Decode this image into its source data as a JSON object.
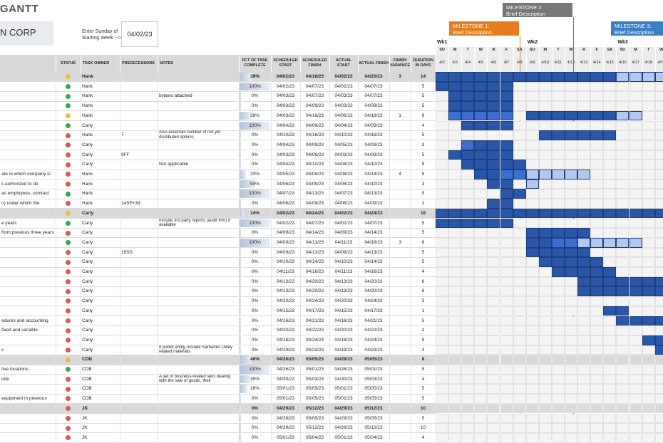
{
  "title": "GANTT",
  "company": "N CORP",
  "week_start_label": "Enter Sunday of Starting Week -->",
  "week_start_value": "04/02/23",
  "colors": {
    "green": "#3aa655",
    "red": "#e05555",
    "yellow": "#f0b84a",
    "dark": "#2a56a8",
    "med": "#3d6fd0",
    "light": "#b4c8ee",
    "orange": "#e57c1f",
    "gray": "#777777",
    "navy": "#3a7fc2"
  },
  "milestones": [
    {
      "label": "MILESTONE 1:\nBrief Description",
      "color": "orange"
    },
    {
      "label": "MILESTONE 2:\nBrief Description",
      "color": "gray"
    },
    {
      "label": "MILESTONE 3:\nBrief Description",
      "color": "navy"
    }
  ],
  "weeks": [
    "Wk1",
    "Wk2",
    "Wk3"
  ],
  "day_letters": [
    "SU",
    "M",
    "T",
    "W",
    "R",
    "F",
    "SA",
    "SU",
    "M",
    "T",
    "W",
    "R",
    "F",
    "SA",
    "SU",
    "M",
    "T",
    "W"
  ],
  "dates": [
    "4/2",
    "4/3",
    "4/4",
    "4/5",
    "4/6",
    "4/7",
    "4/8",
    "4/9",
    "4/10",
    "4/11",
    "4/12",
    "4/13",
    "4/14",
    "4/15",
    "4/16",
    "4/17",
    "4/18",
    "4/19"
  ],
  "headers": {
    "status": "STATUS",
    "owner": "TASK OWNER",
    "pred": "PREDECESSORS",
    "notes": "NOTES",
    "pct": "PCT OF TASK COMPLETE",
    "sstart": "SCHEDULED START",
    "sfinish": "SCHEDULED FINISH",
    "astart": "ACTUAL START",
    "afinish": "ACTUAL FINISH",
    "var": "FINISH VARIANCE",
    "dur": "DURATION IN DAYS"
  },
  "rows": [
    {
      "task": "",
      "status": "yellow",
      "owner": "Hank",
      "pred": "",
      "notes": "",
      "pct": "39%",
      "ss": "04/02/23",
      "sf": "04/16/23",
      "as": "04/02/23",
      "af": "04/20/23",
      "var": "3",
      "dur": "14",
      "header": true,
      "gantt": {
        "dark": [
          0,
          14
        ],
        "light": [
          14,
          18
        ]
      }
    },
    {
      "task": "",
      "status": "green",
      "owner": "Hank",
      "pred": "",
      "notes": "",
      "pct": "100%",
      "ss": "04/02/23",
      "sf": "04/07/23",
      "as": "04/02/23",
      "af": "04/07/23",
      "var": "",
      "dur": "5",
      "gantt": {
        "dark": [
          0,
          6
        ]
      }
    },
    {
      "task": "",
      "status": "green",
      "owner": "Hank",
      "pred": "",
      "notes": "bylaws attached",
      "pct": "0%",
      "ss": "04/03/23",
      "sf": "04/07/23",
      "as": "04/03/23",
      "af": "04/07/23",
      "var": "",
      "dur": "5",
      "gantt": {
        "dark": [
          1,
          6
        ]
      }
    },
    {
      "task": "",
      "status": "green",
      "owner": "Hank",
      "pred": "",
      "notes": "",
      "pct": "0%",
      "ss": "04/03/23",
      "sf": "04/09/23",
      "as": "04/03/23",
      "af": "04/09/23",
      "var": "",
      "dur": "5",
      "gantt": {
        "dark": [
          1,
          6
        ]
      }
    },
    {
      "task": "",
      "status": "yellow",
      "owner": "Hank",
      "pred": "",
      "notes": "",
      "pct": "38%",
      "ss": "04/03/23",
      "sf": "04/16/23",
      "as": "04/06/23",
      "af": "04/18/23",
      "var": "1",
      "dur": "9",
      "gantt": {
        "med": [
          1,
          6
        ],
        "dark": [
          7,
          14
        ],
        "light": [
          14,
          16
        ]
      }
    },
    {
      "task": "",
      "status": "green",
      "owner": "Carly",
      "pred": "",
      "notes": "",
      "pct": "100%",
      "ss": "04/04/23",
      "sf": "04/09/23",
      "as": "04/04/23",
      "af": "04/09/23",
      "var": "",
      "dur": "4",
      "gantt": {
        "dark": [
          2,
          6
        ]
      }
    },
    {
      "task": "",
      "status": "red",
      "owner": "Hank",
      "pred": "7",
      "notes": "Also ascertain number of not yet distributed options",
      "pct": "0%",
      "ss": "04/10/23",
      "sf": "04/16/23",
      "as": "04/10/23",
      "af": "04/16/23",
      "var": "",
      "dur": "5",
      "gantt": {
        "dark": [
          8,
          14
        ]
      }
    },
    {
      "task": "",
      "status": "red",
      "owner": "Carly",
      "pred": "",
      "notes": "",
      "pct": "0%",
      "ss": "04/04/23",
      "sf": "04/09/23",
      "as": "04/05/23",
      "af": "04/09/23",
      "var": "",
      "dur": "3",
      "gantt": {
        "med": [
          2,
          3
        ],
        "dark": [
          3,
          6
        ]
      }
    },
    {
      "task": "",
      "status": "red",
      "owner": "Carly",
      "pred": "9FF",
      "notes": "",
      "pct": "0%",
      "ss": "04/03/23",
      "sf": "04/09/23",
      "as": "04/03/23",
      "af": "04/09/23",
      "var": "",
      "dur": "5",
      "gantt": {
        "dark": [
          1,
          6
        ]
      }
    },
    {
      "task": "",
      "status": "red",
      "owner": "Carly",
      "pred": "",
      "notes": "Not applicable",
      "pct": "0%",
      "ss": "04/04/23",
      "sf": "04/10/23",
      "as": "04/04/23",
      "af": "04/10/23",
      "var": "",
      "dur": "5",
      "gantt": {
        "dark": [
          2,
          7
        ]
      }
    },
    {
      "task": "ate in which company is",
      "status": "red",
      "owner": "Hank",
      "pred": "",
      "notes": "",
      "pct": "20%",
      "ss": "04/05/23",
      "sf": "04/09/23",
      "as": "04/08/23",
      "af": "04/14/23",
      "var": "4",
      "dur": "5",
      "gantt": {
        "dark": [
          3,
          5
        ],
        "med": [
          5,
          7
        ],
        "light": [
          7,
          12
        ]
      }
    },
    {
      "task": "s authorized to do",
      "status": "red",
      "owner": "Hank",
      "pred": "",
      "notes": "",
      "pct": "50%",
      "ss": "04/06/23",
      "sf": "04/09/23",
      "as": "04/06/23",
      "af": "04/10/23",
      "var": "",
      "dur": "3",
      "gantt": {
        "dark": [
          4,
          6
        ],
        "light": [
          7,
          8
        ]
      }
    },
    {
      "task": "as employees, contract",
      "status": "green",
      "owner": "Hank",
      "pred": "",
      "notes": "",
      "pct": "100%",
      "ss": "04/07/23",
      "sf": "04/13/23",
      "as": "04/07/23",
      "af": "04/13/23",
      "var": "",
      "dur": "5",
      "gantt": {
        "dark": [
          5,
          7
        ]
      }
    },
    {
      "task": "n) under which the",
      "status": "red",
      "owner": "Hank",
      "pred": "14SF+3d",
      "notes": "",
      "pct": "0%",
      "ss": "04/06/23",
      "sf": "04/09/23",
      "as": "04/06/23",
      "af": "04/09/23",
      "var": "",
      "dur": "2",
      "gantt": {
        "dark": [
          4,
          6
        ]
      }
    },
    {
      "task": "",
      "status": "yellow",
      "owner": "Carly",
      "pred": "",
      "notes": "",
      "pct": "14%",
      "ss": "04/02/23",
      "sf": "04/24/23",
      "as": "04/02/23",
      "af": "04/24/23",
      "var": "",
      "dur": "16",
      "header": true,
      "gantt": {
        "dark": [
          0,
          18
        ]
      }
    },
    {
      "task": "e years",
      "status": "green",
      "owner": "Carly",
      "pred": "",
      "notes": "Include 3rd party reports (audit firm) if available",
      "pct": "100%",
      "ss": "04/02/23",
      "sf": "04/07/23",
      "as": "04/02/23",
      "af": "04/07/23",
      "var": "",
      "dur": "5",
      "gantt": {
        "dark": [
          0,
          6
        ]
      }
    },
    {
      "task": "from previous three years",
      "status": "red",
      "owner": "Carly",
      "pred": "",
      "notes": "",
      "pct": "0%",
      "ss": "04/09/23",
      "sf": "04/14/23",
      "as": "04/09/23",
      "af": "04/14/23",
      "var": "",
      "dur": "5",
      "gantt": {
        "dark": [
          7,
          12
        ]
      }
    },
    {
      "task": "",
      "status": "green",
      "owner": "Carly",
      "pred": "",
      "notes": "",
      "pct": "100%",
      "ss": "04/09/23",
      "sf": "04/13/23",
      "as": "04/11/23",
      "af": "04/18/23",
      "var": "3",
      "dur": "6",
      "gantt": {
        "dark": [
          7,
          9
        ],
        "med": [
          9,
          11
        ],
        "light": [
          11,
          16
        ]
      }
    },
    {
      "task": "",
      "status": "red",
      "owner": "Carly",
      "pred": "19SS",
      "notes": "",
      "pct": "0%",
      "ss": "04/09/23",
      "sf": "04/13/23",
      "as": "04/09/23",
      "af": "04/13/23",
      "var": "",
      "dur": "5",
      "gantt": {
        "dark": [
          7,
          12
        ]
      }
    },
    {
      "task": "",
      "status": "red",
      "owner": "Carly",
      "pred": "",
      "notes": "",
      "pct": "0%",
      "ss": "04/10/23",
      "sf": "04/14/23",
      "as": "04/10/23",
      "af": "04/14/23",
      "var": "",
      "dur": "5",
      "gantt": {
        "dark": [
          8,
          13
        ]
      }
    },
    {
      "task": "",
      "status": "red",
      "owner": "Carly",
      "pred": "",
      "notes": "",
      "pct": "0%",
      "ss": "04/11/23",
      "sf": "04/16/23",
      "as": "04/11/23",
      "af": "04/16/23",
      "var": "",
      "dur": "4",
      "gantt": {
        "dark": [
          9,
          14
        ]
      }
    },
    {
      "task": "",
      "status": "red",
      "owner": "Carly",
      "pred": "",
      "notes": "",
      "pct": "0%",
      "ss": "04/13/23",
      "sf": "04/20/23",
      "as": "04/13/23",
      "af": "04/20/23",
      "var": "",
      "dur": "6",
      "gantt": {
        "dark": [
          11,
          18
        ]
      }
    },
    {
      "task": "",
      "status": "red",
      "owner": "Carly",
      "pred": "",
      "notes": "",
      "pct": "0%",
      "ss": "04/13/23",
      "sf": "04/20/23",
      "as": "04/13/23",
      "af": "04/20/23",
      "var": "",
      "dur": "6",
      "gantt": {
        "dark": [
          11,
          18
        ]
      }
    },
    {
      "task": "",
      "status": "red",
      "owner": "Carly",
      "pred": "",
      "notes": "",
      "pct": "0%",
      "ss": "04/20/23",
      "sf": "04/24/23",
      "as": "04/20/23",
      "af": "04/24/23",
      "var": "",
      "dur": "3",
      "gantt": {}
    },
    {
      "task": "",
      "status": "red",
      "owner": "Carly",
      "pred": "",
      "notes": "",
      "pct": "0%",
      "ss": "04/15/23",
      "sf": "04/17/23",
      "as": "04/15/23",
      "af": "04/17/23",
      "var": "",
      "dur": "1",
      "gantt": {
        "dark": [
          13,
          15
        ]
      }
    },
    {
      "task": "edures and accounting",
      "status": "red",
      "owner": "Carly",
      "pred": "",
      "notes": "",
      "pct": "0%",
      "ss": "04/16/23",
      "sf": "04/21/23",
      "as": "04/16/23",
      "af": "04/21/23",
      "var": "",
      "dur": "5",
      "gantt": {
        "dark": [
          14,
          18
        ]
      }
    },
    {
      "task": "fixed and variable",
      "status": "red",
      "owner": "Carly",
      "pred": "",
      "notes": "",
      "pct": "0%",
      "ss": "04/20/23",
      "sf": "04/22/23",
      "as": "04/20/23",
      "af": "04/22/23",
      "var": "",
      "dur": "2",
      "gantt": {}
    },
    {
      "task": "",
      "status": "red",
      "owner": "Carly",
      "pred": "",
      "notes": "",
      "pct": "0%",
      "ss": "04/18/23",
      "sf": "04/24/23",
      "as": "04/18/23",
      "af": "04/24/23",
      "var": "",
      "dur": "5",
      "gantt": {
        "dark": [
          16,
          18
        ]
      }
    },
    {
      "task": "s",
      "status": "red",
      "owner": "Carly",
      "pred": "",
      "notes": "If public entity, include Sarbanes Oxley related materials",
      "pct": "0%",
      "ss": "04/19/23",
      "sf": "04/23/23",
      "as": "04/19/23",
      "af": "04/23/23",
      "var": "",
      "dur": "3",
      "gantt": {
        "dark": [
          17,
          18
        ]
      }
    },
    {
      "task": "",
      "status": "yellow",
      "owner": "CDB",
      "pred": "",
      "notes": "",
      "pct": "40%",
      "ss": "04/26/23",
      "sf": "05/05/23",
      "as": "04/26/23",
      "af": "05/05/23",
      "var": "",
      "dur": "8",
      "header": true,
      "gantt": {}
    },
    {
      "task": "tive locations",
      "status": "green",
      "owner": "CDB",
      "pred": "",
      "notes": "",
      "pct": "100%",
      "ss": "04/26/23",
      "sf": "05/01/23",
      "as": "04/26/23",
      "af": "05/01/23",
      "var": "",
      "dur": "5",
      "gantt": {}
    },
    {
      "task": "ode",
      "status": "red",
      "owner": "CDB",
      "pred": "",
      "notes": "A set of business-related laws dealing with the sale of goods, their",
      "pct": "35%",
      "ss": "04/30/23",
      "sf": "05/03/23",
      "as": "04/30/23",
      "af": "05/03/23",
      "var": "",
      "dur": "4",
      "gantt": {}
    },
    {
      "task": "",
      "status": "red",
      "owner": "CDB",
      "pred": "",
      "notes": "",
      "pct": "26%",
      "ss": "05/01/23",
      "sf": "05/05/23",
      "as": "05/01/23",
      "af": "05/05/23",
      "var": "",
      "dur": "5",
      "gantt": {}
    },
    {
      "task": "equipment in previous",
      "status": "red",
      "owner": "CDB",
      "pred": "",
      "notes": "",
      "pct": "0%",
      "ss": "05/01/23",
      "sf": "05/05/23",
      "as": "05/01/23",
      "af": "05/05/23",
      "var": "",
      "dur": "5",
      "gantt": {}
    },
    {
      "task": "",
      "status": "red",
      "owner": "JK",
      "pred": "",
      "notes": "",
      "pct": "0%",
      "ss": "04/29/23",
      "sf": "05/12/23",
      "as": "04/29/23",
      "af": "05/12/23",
      "var": "",
      "dur": "10",
      "header": true,
      "gantt": {}
    },
    {
      "task": "",
      "status": "red",
      "owner": "JK",
      "pred": "",
      "notes": "",
      "pct": "0%",
      "ss": "04/29/23",
      "sf": "05/05/23",
      "as": "04/29/23",
      "af": "05/05/23",
      "var": "",
      "dur": "5",
      "gantt": {}
    },
    {
      "task": "",
      "status": "red",
      "owner": "JK",
      "pred": "",
      "notes": "",
      "pct": "0%",
      "ss": "04/29/23",
      "sf": "05/12/23",
      "as": "04/29/23",
      "af": "05/12/23",
      "var": "",
      "dur": "10",
      "gantt": {}
    },
    {
      "task": "",
      "status": "red",
      "owner": "JK",
      "pred": "",
      "notes": "",
      "pct": "0%",
      "ss": "05/01/23",
      "sf": "05/04/23",
      "as": "05/01/23",
      "af": "05/04/23",
      "var": "",
      "dur": "4",
      "gantt": {}
    }
  ]
}
